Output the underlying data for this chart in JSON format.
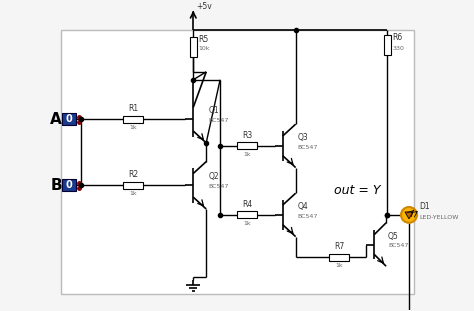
{
  "bg_color": "#f5f5f5",
  "border_color": "#cccccc",
  "line_color": "#000000",
  "input_A_label": "A",
  "input_B_label": "B",
  "output_label": "out = Y",
  "vcc_label": "+5v",
  "transistor_label": "BC547",
  "R1": "R1",
  "R1v": "1k",
  "R2": "R2",
  "R2v": "1k",
  "R3": "R3",
  "R3v": "1k",
  "R4": "R4",
  "R4v": "1k",
  "R5": "R5",
  "R5v": "10k",
  "R6": "R6",
  "R6v": "330",
  "R7": "R7",
  "R7v": "1k",
  "Q1": "Q1",
  "Q2": "Q2",
  "Q3": "Q3",
  "Q4": "Q4",
  "Q5": "Q5",
  "led_label": "D1",
  "led_sublabel": "LED-YELLOW",
  "led_color": "#FFB300",
  "input_box_color": "#1a3a8c",
  "input_dot_color": "#8b0000",
  "lw": 1.0
}
